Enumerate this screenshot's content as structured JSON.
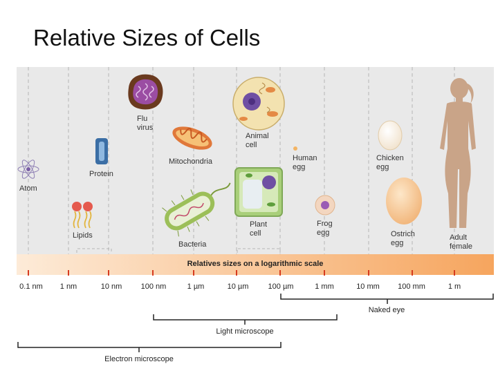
{
  "title": "Relative Sizes of Cells",
  "scale_caption": "Relatives sizes on a logarithmic scale",
  "ticks": [
    "0.1 nm",
    "1 nm",
    "10 nm",
    "100 nm",
    "1 µm",
    "10 µm",
    "100 µm",
    "1 mm",
    "10 mm",
    "100 mm",
    "1 m"
  ],
  "items": {
    "atom": "Atom",
    "lipids": "Lipids",
    "protein": "Protein",
    "flu_virus": [
      "Flu",
      "virus"
    ],
    "mitochondria": "Mitochondria",
    "bacteria": "Bacteria",
    "animal_cell": [
      "Animal",
      "cell"
    ],
    "plant_cell": [
      "Plant",
      "cell"
    ],
    "human_egg": [
      "Human",
      "egg"
    ],
    "frog_egg": [
      "Frog",
      "egg"
    ],
    "chicken_egg": [
      "Chicken",
      "egg"
    ],
    "ostrich_egg": [
      "Ostrich",
      "egg"
    ],
    "adult_female": [
      "Adult",
      "female"
    ]
  },
  "ranges": {
    "naked_eye": "Naked eye",
    "light_microscope": "Light microscope",
    "electron_microscope": "Electron microscope"
  },
  "colors": {
    "panel_bg": "#e9e9e9",
    "scale_bar_start": "#fdebd8",
    "scale_bar_end": "#f6a55e",
    "tick_red": "#d63a1f"
  }
}
